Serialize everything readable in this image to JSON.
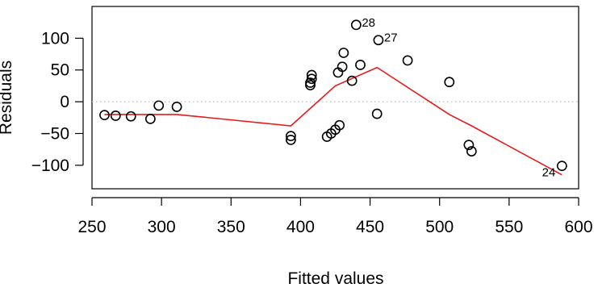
{
  "chart_data": {
    "type": "scatter",
    "title": "",
    "xlabel": "Fitted values",
    "ylabel": "Residuals",
    "xlim": [
      250,
      600
    ],
    "ylim": [
      -137,
      150
    ],
    "x_ticks": [
      250,
      300,
      350,
      400,
      450,
      500,
      550,
      600
    ],
    "x_tick_labels": [
      "250",
      "300",
      "350",
      "400",
      "450",
      "500",
      "550",
      "600"
    ],
    "y_ticks": [
      -100,
      -50,
      0,
      50,
      100
    ],
    "y_tick_labels": [
      "−100",
      "−50",
      "0",
      "50",
      "100"
    ],
    "reference_line": {
      "y": 0,
      "style": "dotted",
      "color": "#bbbbbb"
    },
    "grid": false,
    "points": [
      {
        "x": 259,
        "y": -21
      },
      {
        "x": 267,
        "y": -22
      },
      {
        "x": 278,
        "y": -23
      },
      {
        "x": 292,
        "y": -27
      },
      {
        "x": 298,
        "y": -6
      },
      {
        "x": 311,
        "y": -8
      },
      {
        "x": 393,
        "y": -54
      },
      {
        "x": 393,
        "y": -60
      },
      {
        "x": 407,
        "y": 26
      },
      {
        "x": 407,
        "y": 30
      },
      {
        "x": 408,
        "y": 36
      },
      {
        "x": 408,
        "y": 42
      },
      {
        "x": 419,
        "y": -55
      },
      {
        "x": 422,
        "y": -50
      },
      {
        "x": 425,
        "y": -44
      },
      {
        "x": 428,
        "y": -37
      },
      {
        "x": 427,
        "y": 46
      },
      {
        "x": 430,
        "y": 55
      },
      {
        "x": 431,
        "y": 77
      },
      {
        "x": 437,
        "y": 33
      },
      {
        "x": 440,
        "y": 121,
        "label": "28"
      },
      {
        "x": 443,
        "y": 58
      },
      {
        "x": 455,
        "y": -19
      },
      {
        "x": 456,
        "y": 97,
        "label": "27"
      },
      {
        "x": 477,
        "y": 65
      },
      {
        "x": 507,
        "y": 31
      },
      {
        "x": 521,
        "y": -68
      },
      {
        "x": 523,
        "y": -78
      },
      {
        "x": 588,
        "y": -101,
        "label": "24"
      }
    ],
    "smoother": {
      "color": "#e8191a",
      "x": [
        259,
        311,
        393,
        425,
        455,
        507,
        523,
        588
      ],
      "y": [
        -20,
        -20,
        -38,
        25,
        54,
        -20,
        -38,
        -115
      ]
    }
  }
}
